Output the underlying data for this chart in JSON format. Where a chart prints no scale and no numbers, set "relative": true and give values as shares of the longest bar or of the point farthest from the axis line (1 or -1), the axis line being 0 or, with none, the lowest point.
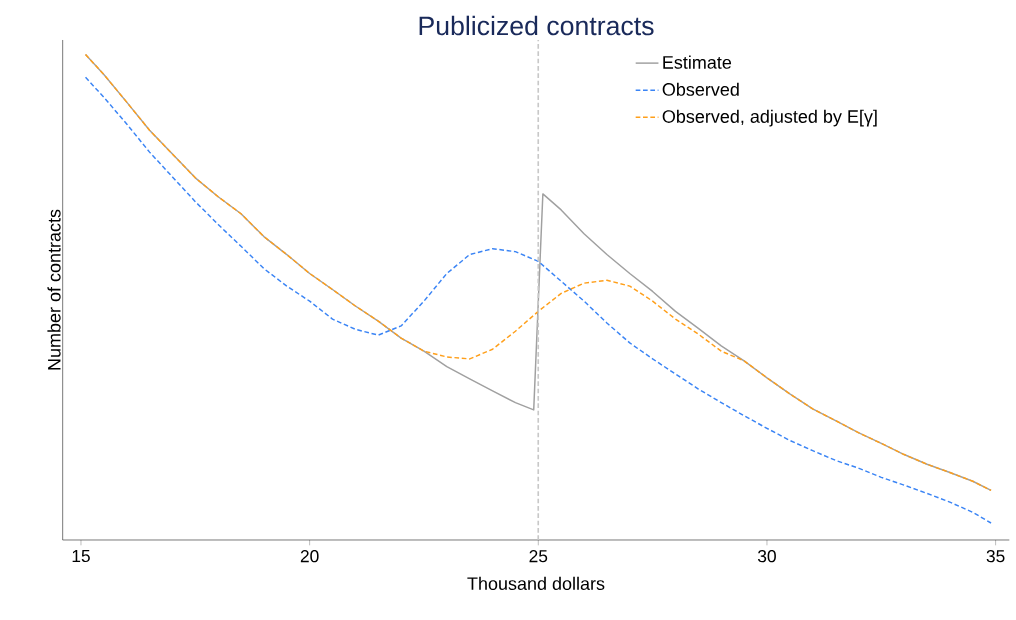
{
  "chart_data": {
    "type": "line",
    "title": "Publicized contracts",
    "xlabel": "Thousand dollars",
    "ylabel": "Number of contracts",
    "relative": true,
    "xlim": [
      14.6,
      35.3
    ],
    "xticks": [
      15,
      20,
      25,
      30,
      35
    ],
    "legend": "top right",
    "grid": false,
    "marker": "none",
    "ref_lines": [
      {
        "axis": "x",
        "value": 25,
        "color": "#c8c8c8",
        "line_style": "dashed"
      }
    ],
    "series": [
      {
        "name": "Estimate",
        "color": "#a0a0a0",
        "line_style": "solid",
        "x": [
          15.1,
          15.5,
          16,
          16.5,
          17,
          17.5,
          18,
          18.5,
          19,
          19.5,
          20,
          20.5,
          21,
          21.5,
          22,
          22.5,
          23,
          23.5,
          24,
          24.5,
          24.9,
          25.1,
          25.5,
          26,
          26.5,
          27,
          27.5,
          28,
          28.5,
          29,
          29.5,
          30,
          30.5,
          31,
          31.5,
          32,
          32.5,
          33,
          33.5,
          34,
          34.5,
          34.9
        ],
        "values": [
          1.0,
          0.959,
          0.902,
          0.844,
          0.795,
          0.746,
          0.707,
          0.672,
          0.625,
          0.588,
          0.549,
          0.516,
          0.482,
          0.451,
          0.416,
          0.389,
          0.357,
          0.332,
          0.307,
          0.283,
          0.268,
          0.713,
          0.68,
          0.631,
          0.588,
          0.549,
          0.512,
          0.471,
          0.436,
          0.4,
          0.369,
          0.334,
          0.301,
          0.27,
          0.246,
          0.221,
          0.199,
          0.176,
          0.156,
          0.139,
          0.121,
          0.102
        ]
      },
      {
        "name": "Observed",
        "color": "#3a84f5",
        "line_style": "dashed",
        "x": [
          15.1,
          15.5,
          16,
          16.5,
          17,
          17.5,
          18,
          18.5,
          19,
          19.5,
          20,
          20.5,
          21,
          21.5,
          22,
          22.5,
          23,
          23.5,
          24,
          24.5,
          25,
          25.5,
          26,
          26.5,
          27,
          27.5,
          28,
          28.5,
          29,
          29.5,
          30,
          30.5,
          31,
          31.5,
          32,
          32.5,
          33,
          33.5,
          34,
          34.5,
          34.9
        ],
        "values": [
          0.953,
          0.912,
          0.857,
          0.799,
          0.748,
          0.697,
          0.65,
          0.605,
          0.559,
          0.523,
          0.492,
          0.455,
          0.434,
          0.422,
          0.441,
          0.492,
          0.549,
          0.588,
          0.6,
          0.594,
          0.574,
          0.533,
          0.492,
          0.447,
          0.406,
          0.373,
          0.342,
          0.311,
          0.283,
          0.256,
          0.23,
          0.205,
          0.184,
          0.164,
          0.148,
          0.129,
          0.113,
          0.096,
          0.078,
          0.057,
          0.035
        ]
      },
      {
        "name": "Observed, adjusted by E[γ]",
        "color": "#ff9f1a",
        "line_style": "dashed",
        "x": [
          15.1,
          15.5,
          16,
          16.5,
          17,
          17.5,
          18,
          18.5,
          19,
          19.5,
          20,
          20.5,
          21,
          21.5,
          22,
          22.5,
          23,
          23.5,
          24,
          24.5,
          25,
          25.5,
          26,
          26.5,
          27,
          27.5,
          28,
          28.5,
          29,
          29.5,
          30,
          30.5,
          31,
          31.5,
          32,
          32.5,
          33,
          33.5,
          34,
          34.5,
          34.9
        ],
        "values": [
          1.0,
          0.959,
          0.902,
          0.844,
          0.795,
          0.746,
          0.707,
          0.672,
          0.625,
          0.588,
          0.549,
          0.516,
          0.482,
          0.451,
          0.416,
          0.389,
          0.377,
          0.373,
          0.393,
          0.43,
          0.471,
          0.508,
          0.529,
          0.535,
          0.523,
          0.492,
          0.455,
          0.424,
          0.389,
          0.369,
          0.334,
          0.301,
          0.27,
          0.246,
          0.221,
          0.199,
          0.176,
          0.156,
          0.139,
          0.121,
          0.102
        ]
      }
    ]
  }
}
